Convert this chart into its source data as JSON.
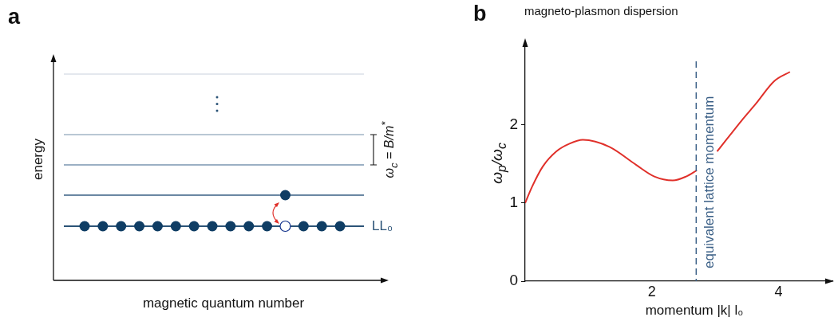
{
  "chart_data": [
    {
      "type": "other",
      "xlabel": "magnetic quantum number",
      "ylabel": "energy",
      "annotations": [
        "a",
        "LL₀",
        "ω$_{c}$ = B/m$^{*}$"
      ]
    },
    {
      "type": "line",
      "title": "magneto-plasmon dispersion",
      "xlabel": "momentum |k| l₀",
      "ylabel": "ω$_{p}$/ω$_{c}$",
      "annotations": [
        "b"
      ],
      "x": [
        0,
        0.11,
        0.28,
        0.49,
        0.7,
        0.91,
        1.33,
        1.75,
        2.04,
        2.33,
        2.54,
        2.71,
        2.85,
        3.03,
        3.43,
        3.64,
        3.93,
        4.18
      ],
      "series": [
        {
          "color": "#e0302a",
          "values": [
            1.0,
            1.21,
            1.47,
            1.66,
            1.76,
            1.81,
            1.72,
            1.49,
            1.34,
            1.29,
            1.34,
            1.42,
            null,
            1.66,
            2.07,
            2.27,
            2.56,
            2.68
          ]
        }
      ],
      "xlim": [
        0,
        4.85
      ],
      "ylim": [
        0,
        3.07
      ],
      "xticks": [
        2,
        4
      ],
      "yticks": [
        0,
        1,
        2
      ],
      "legend": false,
      "ref_lines": [
        {
          "axis": "x",
          "value": 2.7,
          "label": "equivalent lattice momentum",
          "color": "#3a5f86",
          "line_style": "dashed"
        }
      ]
    }
  ]
}
